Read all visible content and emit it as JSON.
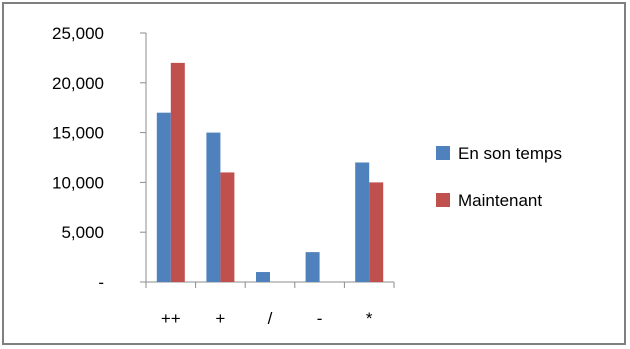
{
  "chart_data": {
    "type": "bar",
    "categories": [
      "++",
      "+",
      "/",
      "-",
      "*"
    ],
    "series": [
      {
        "name": "En son temps",
        "color": "#4f81bd",
        "values": [
          17000,
          15000,
          1000,
          3000,
          12000
        ]
      },
      {
        "name": "Maintenant",
        "color": "#c0504d",
        "values": [
          22000,
          11000,
          0,
          0,
          10000
        ]
      }
    ],
    "ylim": [
      0,
      25000
    ],
    "y_ticks": [
      0,
      5000,
      10000,
      15000,
      20000,
      25000
    ],
    "y_tick_labels": [
      "-",
      "5,000",
      "10,000",
      "15,000",
      "20,000",
      "25,000"
    ],
    "grid": false,
    "legend_position": "right",
    "title": "",
    "xlabel": "",
    "ylabel": ""
  }
}
